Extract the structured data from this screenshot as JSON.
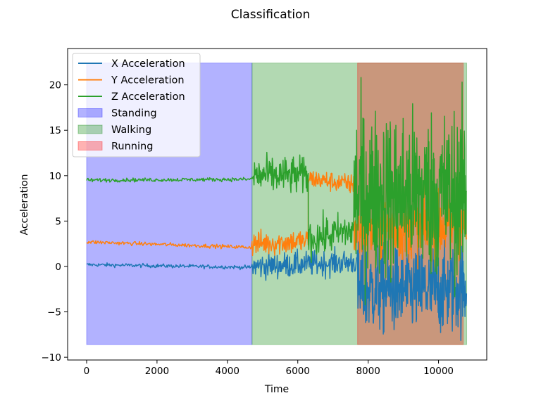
{
  "chart_data": {
    "type": "line",
    "title": "Classification",
    "xlabel": "Time",
    "ylabel": "Acceleration",
    "xlim": [
      -540,
      11370
    ],
    "ylim": [
      -10.3,
      24
    ],
    "xticks": [
      0,
      2000,
      4000,
      6000,
      8000,
      10000
    ],
    "yticks": [
      -10,
      -5,
      0,
      5,
      10,
      15,
      20
    ],
    "grid": false,
    "legend": "top-left",
    "series": [
      {
        "name": "X Acceleration",
        "color": "#1f77b4",
        "segments": [
          {
            "start": 0,
            "end": 4700,
            "mean": [
              0.2,
              -0.1
            ],
            "noise": 0.15
          },
          {
            "start": 4700,
            "end": 7700,
            "mean": [
              0.0,
              0.5
            ],
            "noise": 1.0
          },
          {
            "start": 7700,
            "end": 10800,
            "mean": [
              -2.5,
              -2.5
            ],
            "noise": 3.5
          }
        ]
      },
      {
        "name": "Y Acceleration",
        "color": "#ff7f0e",
        "segments": [
          {
            "start": 0,
            "end": 4700,
            "mean": [
              2.7,
              2.1
            ],
            "noise": 0.15
          },
          {
            "start": 4700,
            "end": 6300,
            "mean": [
              2.5,
              2.8
            ],
            "noise": 1.0
          },
          {
            "start": 6300,
            "end": 7600,
            "mean": [
              9.7,
              9.0
            ],
            "noise": 0.8
          },
          {
            "start": 7600,
            "end": 10800,
            "mean": [
              4.0,
              4.5
            ],
            "noise": 2.5
          }
        ]
      },
      {
        "name": "Z Acceleration",
        "color": "#2ca02c",
        "segments": [
          {
            "start": 0,
            "end": 4700,
            "mean": [
              9.5,
              9.6
            ],
            "noise": 0.15
          },
          {
            "start": 4700,
            "end": 6300,
            "mean": [
              10.0,
              10.0
            ],
            "noise": 1.5
          },
          {
            "start": 6300,
            "end": 7600,
            "mean": [
              3.0,
              4.0
            ],
            "noise": 1.5
          },
          {
            "start": 7600,
            "end": 10800,
            "mean": [
              8.0,
              8.0
            ],
            "noise": 6.5
          }
        ]
      }
    ],
    "regions": [
      {
        "name": "Standing",
        "start": 0,
        "end": 4700,
        "color": "#0000ff",
        "y": [
          -8.6,
          22.4
        ]
      },
      {
        "name": "Walking",
        "start": 4700,
        "end": 10800,
        "color": "#008000",
        "y": [
          -8.6,
          22.4
        ]
      },
      {
        "name": "Running",
        "start": 7700,
        "end": 10700,
        "color": "#ff0000",
        "y": [
          -8.6,
          22.4
        ]
      }
    ]
  }
}
